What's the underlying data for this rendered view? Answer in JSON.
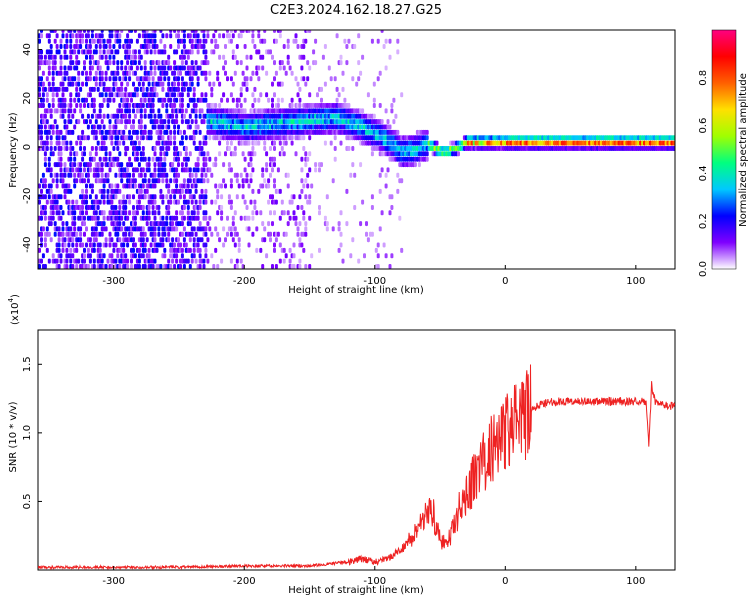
{
  "title": "C2E3.2024.162.18.27.G25",
  "chart_data": [
    {
      "type": "heatmap",
      "xlabel": "Height of straight line (km)",
      "ylabel": "Frequency (Hz)",
      "xlim": [
        -358,
        130
      ],
      "ylim": [
        -50,
        48
      ],
      "xticks": [
        -300,
        -200,
        -100,
        0,
        100
      ],
      "yticks": [
        -40,
        -20,
        0,
        20,
        40
      ],
      "grid": false,
      "colorbar": {
        "label": "Normalized spectral amplitude",
        "range": [
          0,
          1
        ],
        "ticks": [
          "0.0",
          "0.2",
          "0.4",
          "0.6",
          "0.8"
        ],
        "colormap": [
          "#ffffff",
          "#7f00ff",
          "#0000ff",
          "#00c8ff",
          "#00ff80",
          "#a0ff00",
          "#ffe000",
          "#ff6000",
          "#ff0000",
          "#ff0080"
        ]
      },
      "center_frequency_track": {
        "x": [
          -230,
          -200,
          -150,
          -130,
          -110,
          -95,
          -80,
          -70,
          -60,
          -50,
          -40,
          -30,
          -20,
          0,
          50,
          100,
          130
        ],
        "y": [
          10,
          7,
          10,
          11,
          7,
          3,
          -3,
          -2,
          0,
          -3,
          -2,
          1,
          1,
          1,
          1,
          1,
          1
        ]
      }
    },
    {
      "type": "line",
      "xlabel": "Height of straight line (km)",
      "ylabel": "SNR (10 * v/v)",
      "yscale_label": "(x10",
      "yscale_exp": "4",
      "xlim": [
        -358,
        130
      ],
      "ylim": [
        0,
        1.75
      ],
      "xticks": [
        -300,
        -200,
        -100,
        0,
        100
      ],
      "yticks": [
        "0.5",
        "1.0",
        "1.5"
      ],
      "grid": false,
      "series": [
        {
          "color": "#ee2222",
          "x": [
            -358,
            -300,
            -250,
            -200,
            -150,
            -120,
            -110,
            -100,
            -90,
            -80,
            -70,
            -65,
            -60,
            -55,
            -50,
            -45,
            -40,
            -35,
            -30,
            -25,
            -20,
            -15,
            -10,
            -5,
            0,
            5,
            10,
            15,
            20,
            25,
            30,
            40,
            50,
            60,
            70,
            80,
            90,
            100,
            105,
            108,
            110,
            112,
            115,
            120,
            130
          ],
          "y": [
            0.02,
            0.02,
            0.02,
            0.03,
            0.03,
            0.06,
            0.08,
            0.06,
            0.08,
            0.15,
            0.25,
            0.35,
            0.45,
            0.4,
            0.22,
            0.18,
            0.3,
            0.45,
            0.55,
            0.65,
            0.75,
            0.8,
            0.9,
            0.98,
            1.0,
            1.03,
            1.07,
            1.12,
            1.16,
            1.2,
            1.22,
            1.23,
            1.23,
            1.23,
            1.23,
            1.23,
            1.23,
            1.23,
            1.24,
            1.22,
            0.9,
            1.35,
            1.22,
            1.21,
            1.19
          ]
        }
      ]
    }
  ]
}
